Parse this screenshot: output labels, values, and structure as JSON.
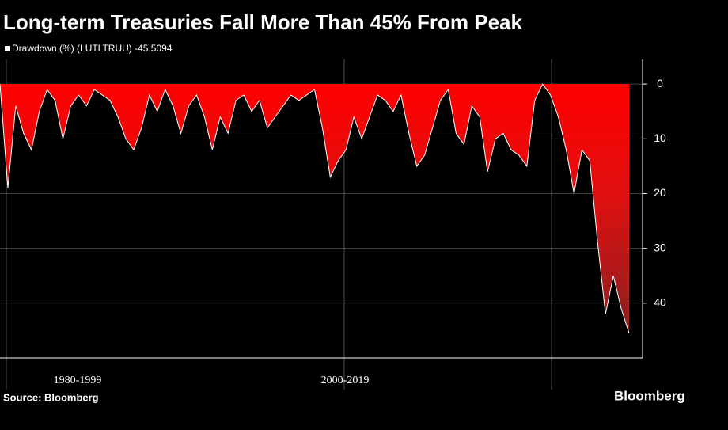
{
  "chart_data": {
    "type": "area",
    "title": "Long-term Treasuries Fall More Than 45% From Peak",
    "series": [
      {
        "name": "Drawdown (%) (LUTLTRUU) -45.5094",
        "color": "#ff0000",
        "values": [
          0,
          -19,
          -4,
          -9,
          -12,
          -5,
          -1,
          -3,
          -10,
          -4,
          -2,
          -4,
          -1,
          -2,
          -3,
          -6,
          -10,
          -12,
          -8,
          -2,
          -5,
          -1,
          -4,
          -9,
          -4,
          -2,
          -6,
          -12,
          -6,
          -9,
          -3,
          -2,
          -5,
          -3,
          -8,
          -6,
          -4,
          -2,
          -3,
          -2,
          -1,
          -8,
          -17,
          -14,
          -12,
          -6,
          -10,
          -6,
          -2,
          -3,
          -5,
          -2,
          -9,
          -15,
          -13,
          -8,
          -3,
          -1,
          -9,
          -11,
          -4,
          -6,
          -16,
          -10,
          -9,
          -12,
          -13,
          -15,
          -3,
          0,
          -2,
          -6,
          -12,
          -20,
          -12,
          -14,
          -29,
          -42,
          -35,
          -41,
          -45.5094
        ]
      }
    ],
    "periods": [
      "1980-1999",
      "2000-2019"
    ],
    "ylim": [
      -50,
      4.5
    ],
    "yticks": [
      0,
      {
        "value": -10,
        "label": "10"
      },
      {
        "value": -20,
        "label": "20"
      },
      {
        "value": -30,
        "label": "30"
      },
      {
        "value": -40,
        "label": "40"
      }
    ],
    "grid": true,
    "source": "Source: Bloomberg",
    "brand": "Bloomberg"
  }
}
